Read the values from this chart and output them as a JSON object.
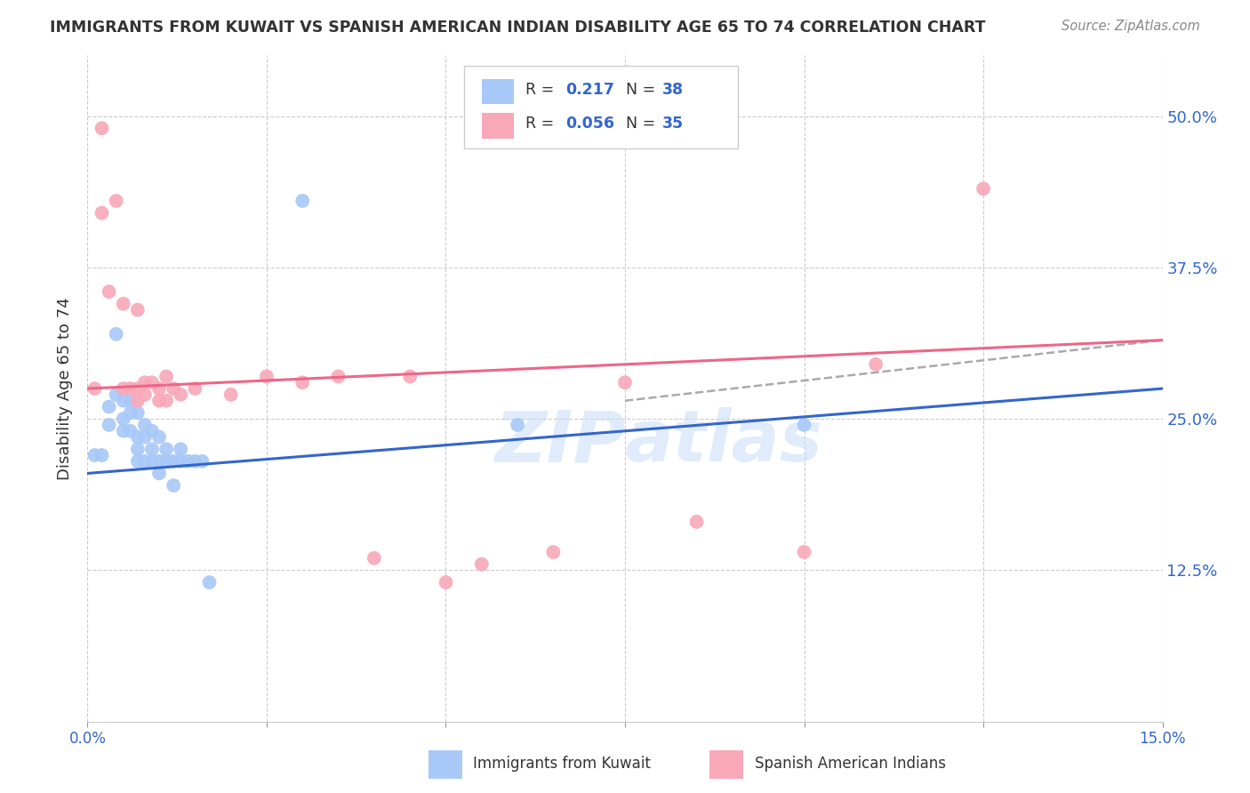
{
  "title": "IMMIGRANTS FROM KUWAIT VS SPANISH AMERICAN INDIAN DISABILITY AGE 65 TO 74 CORRELATION CHART",
  "source": "Source: ZipAtlas.com",
  "ylabel": "Disability Age 65 to 74",
  "xlim": [
    0.0,
    0.15
  ],
  "ylim": [
    0.0,
    0.55
  ],
  "yticks": [
    0.125,
    0.25,
    0.375,
    0.5
  ],
  "ytick_labels": [
    "12.5%",
    "25.0%",
    "37.5%",
    "50.0%"
  ],
  "xticks": [
    0.0,
    0.025,
    0.05,
    0.075,
    0.1,
    0.125,
    0.15
  ],
  "legend_R_blue": "0.217",
  "legend_N_blue": "38",
  "legend_R_pink": "0.056",
  "legend_N_pink": "35",
  "blue_scatter_color": "#a8c8f8",
  "pink_scatter_color": "#f8a8b8",
  "blue_line_color": "#3366cc",
  "pink_line_color": "#ee6688",
  "dash_line_color": "#aaaaaa",
  "watermark_color": "#c8ddf8",
  "label_color": "#3366cc",
  "title_color": "#333333",
  "source_color": "#888888",
  "grid_color": "#cccccc",
  "legend_label_blue": "Immigrants from Kuwait",
  "legend_label_pink": "Spanish American Indians",
  "blue_line_x0": 0.0,
  "blue_line_y0": 0.205,
  "blue_line_x1": 0.15,
  "blue_line_y1": 0.275,
  "pink_line_x0": 0.0,
  "pink_line_y0": 0.275,
  "pink_line_x1": 0.15,
  "pink_line_y1": 0.315,
  "dash_line_x0": 0.075,
  "dash_line_y0": 0.265,
  "dash_line_x1": 0.15,
  "dash_line_y1": 0.315,
  "blue_scatter_x": [
    0.001,
    0.002,
    0.003,
    0.003,
    0.004,
    0.004,
    0.005,
    0.005,
    0.005,
    0.006,
    0.006,
    0.006,
    0.007,
    0.007,
    0.007,
    0.007,
    0.008,
    0.008,
    0.008,
    0.009,
    0.009,
    0.009,
    0.01,
    0.01,
    0.01,
    0.011,
    0.011,
    0.012,
    0.012,
    0.013,
    0.013,
    0.014,
    0.015,
    0.016,
    0.017,
    0.06,
    0.1,
    0.03
  ],
  "blue_scatter_y": [
    0.22,
    0.22,
    0.245,
    0.26,
    0.27,
    0.32,
    0.265,
    0.25,
    0.24,
    0.265,
    0.255,
    0.24,
    0.255,
    0.235,
    0.225,
    0.215,
    0.245,
    0.235,
    0.215,
    0.24,
    0.225,
    0.215,
    0.235,
    0.215,
    0.205,
    0.225,
    0.215,
    0.215,
    0.195,
    0.225,
    0.215,
    0.215,
    0.215,
    0.215,
    0.115,
    0.245,
    0.245,
    0.43
  ],
  "pink_scatter_x": [
    0.001,
    0.002,
    0.002,
    0.003,
    0.004,
    0.005,
    0.005,
    0.006,
    0.007,
    0.007,
    0.007,
    0.008,
    0.008,
    0.009,
    0.01,
    0.01,
    0.011,
    0.011,
    0.012,
    0.013,
    0.015,
    0.02,
    0.025,
    0.03,
    0.035,
    0.04,
    0.045,
    0.05,
    0.055,
    0.065,
    0.075,
    0.085,
    0.1,
    0.11,
    0.125
  ],
  "pink_scatter_y": [
    0.275,
    0.49,
    0.42,
    0.355,
    0.43,
    0.345,
    0.275,
    0.275,
    0.34,
    0.275,
    0.265,
    0.27,
    0.28,
    0.28,
    0.275,
    0.265,
    0.285,
    0.265,
    0.275,
    0.27,
    0.275,
    0.27,
    0.285,
    0.28,
    0.285,
    0.135,
    0.285,
    0.115,
    0.13,
    0.14,
    0.28,
    0.165,
    0.14,
    0.295,
    0.44
  ]
}
